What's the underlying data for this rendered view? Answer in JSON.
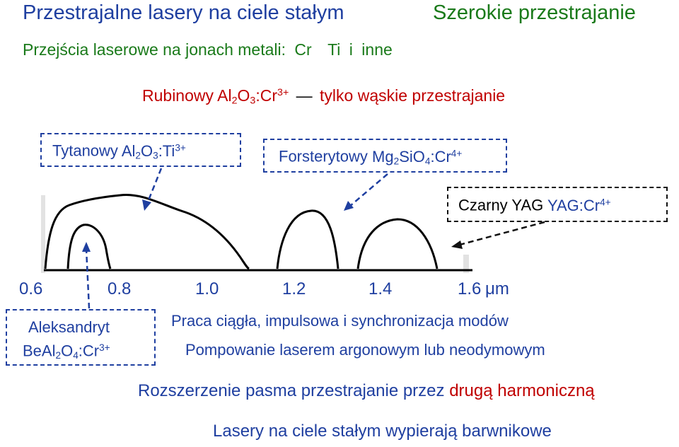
{
  "title_left": "Przestrajalne lasery na ciele stałym",
  "title_right": "Szerokie przestrajanie",
  "transitions": {
    "label": "Przejścia laserowe na jonach metali:",
    "ions": [
      "Cr",
      "Ti",
      "i",
      "inne"
    ]
  },
  "ruby": {
    "name": "Rubinowy",
    "al": "Al",
    "s2": "2",
    "o": "O",
    "s3": "3",
    "ion": ":Cr",
    "charge": "3+",
    "dash": "—",
    "note": "tylko wąskie przestrajanie"
  },
  "titanium": {
    "name": "Tytanowy",
    "al": "Al",
    "s2": "2",
    "o": "O",
    "s3": "3",
    "ion": ":Ti",
    "charge": "3+"
  },
  "forsterite": {
    "name": "Forsterytowy",
    "mg": "Mg",
    "s2": "2",
    "sio": "SiO",
    "s4": "4",
    "ion": ":Cr",
    "charge": "4+"
  },
  "yag": {
    "name": "Czarny YAG",
    "formula": "YAG:Cr",
    "charge": "4+"
  },
  "alexandrite": {
    "name": "Aleksandryt",
    "beal": "BeAl",
    "s2": "2",
    "o": "O",
    "s4": "4",
    "ion": ":Cr",
    "charge": "3+"
  },
  "axis": {
    "ticks": [
      "0.6",
      "0.8",
      "1.0",
      "1.2",
      "1.4",
      "1.6"
    ],
    "unit": "μm"
  },
  "operation": "Praca ciągła, impulsowa i synchronizacja modów",
  "pumping": "Pompowanie laserem argonowym lub neodymowym",
  "shg": {
    "text": "Rozszerzenie pasma przestrajanie przez",
    "highlight": "drugą harmoniczną"
  },
  "conclusion": "Lasery na ciele stałym wypierają barwnikowe",
  "colors": {
    "blue": "#1f3fa0",
    "green": "#1a7a1a",
    "red": "#c00000",
    "black": "#000000"
  }
}
